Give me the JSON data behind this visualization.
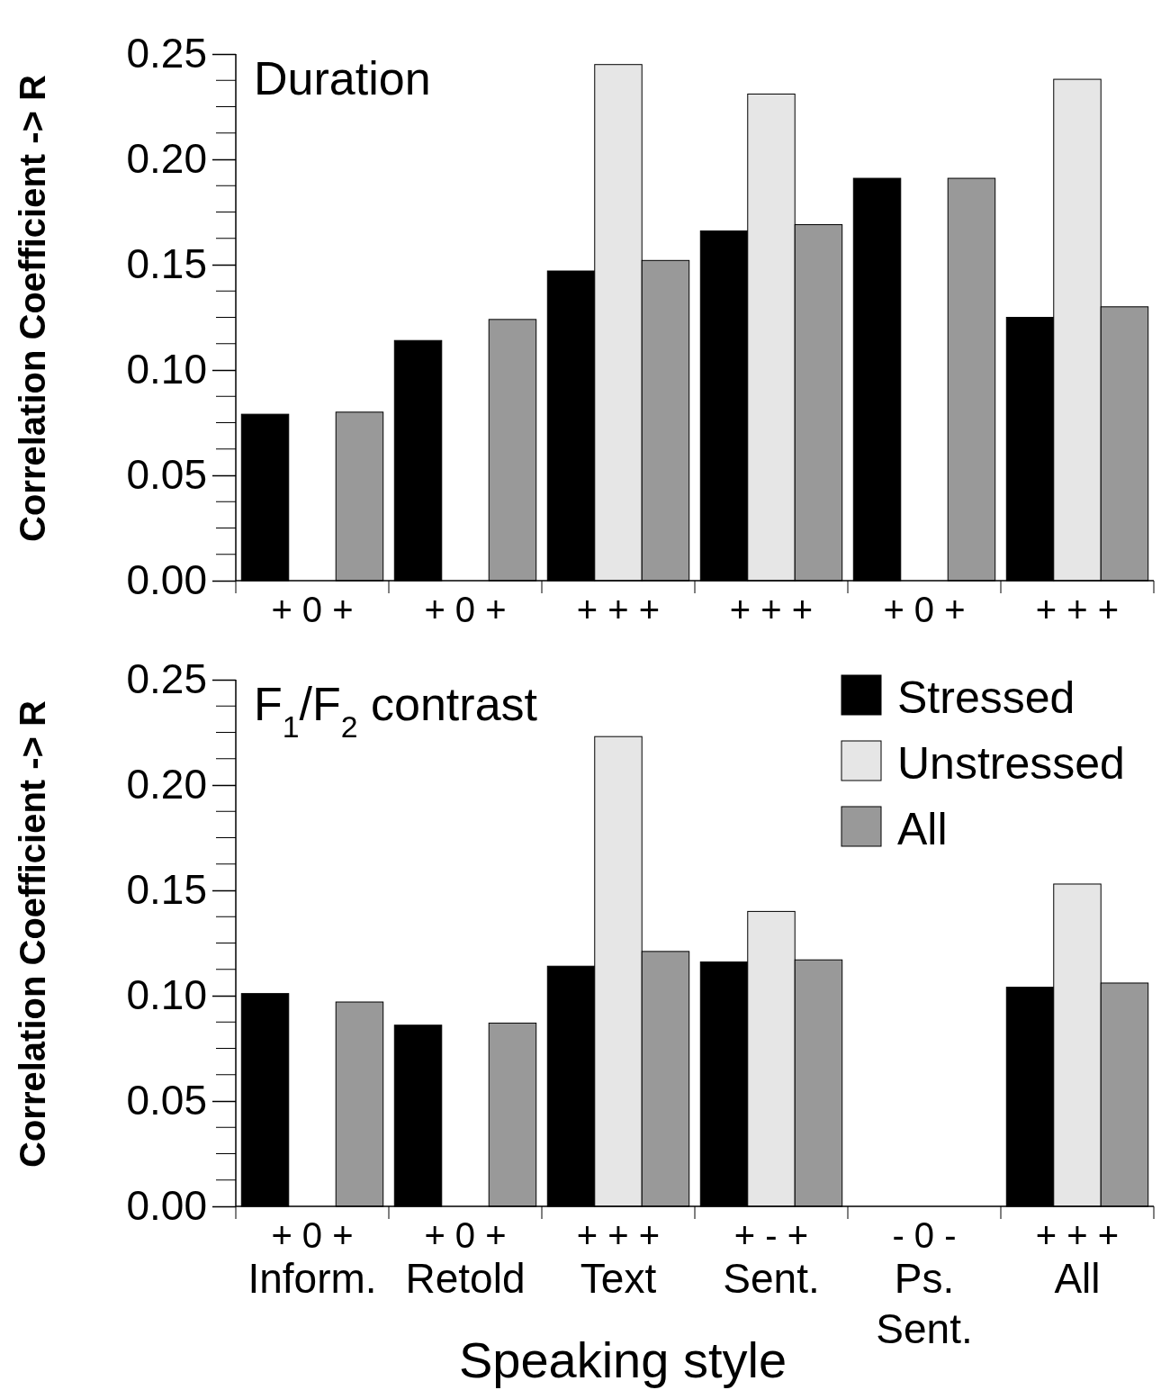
{
  "chart_data": [
    {
      "type": "bar",
      "title": "Duration",
      "ylabel": "Correlation Coefficient -> R",
      "categories": [
        null,
        null,
        null,
        null,
        null,
        null
      ],
      "series": [
        {
          "color": "#000000",
          "values": [
            0.079,
            0.114,
            0.147,
            0.166,
            0.191,
            0.125
          ]
        },
        {
          "color": "#e6e6e6",
          "values": [
            null,
            null,
            0.245,
            0.231,
            null,
            0.238
          ]
        },
        {
          "color": "#999999",
          "values": [
            0.08,
            0.124,
            0.152,
            0.169,
            0.191,
            0.13
          ]
        }
      ],
      "ylim": [
        0,
        0.25
      ],
      "yticks": [
        {
          "value": 0,
          "label": "0.00"
        },
        {
          "value": 0.05,
          "label": "0.05"
        },
        {
          "value": 0.1,
          "label": "0.10"
        },
        {
          "value": 0.15,
          "label": "0.15"
        },
        {
          "value": 0.2,
          "label": "0.20"
        },
        {
          "value": 0.25,
          "label": "0.25"
        }
      ],
      "tick_labels": "y",
      "legend": false,
      "annotations": [
        "+ 0 +",
        "+ 0 +",
        "+ + +",
        "+ + +",
        "+ 0 +",
        "+ + +"
      ]
    },
    {
      "type": "bar",
      "title": "F$_{1}$/F$_{2}$ contrast",
      "ylabel": "Correlation Coefficient -> R",
      "xlabel": "Speaking style",
      "categories": [
        "Inform.",
        "Retold",
        "Text",
        "Sent.",
        "Ps. Sent.",
        "All"
      ],
      "series": [
        {
          "name": "Stressed",
          "color": "#000000",
          "values": [
            0.101,
            0.086,
            0.114,
            0.116,
            0,
            0.104
          ]
        },
        {
          "name": "Unstressed",
          "color": "#e6e6e6",
          "values": [
            null,
            null,
            0.223,
            0.14,
            0,
            0.153
          ]
        },
        {
          "name": "All",
          "color": "#999999",
          "values": [
            0.097,
            0.087,
            0.121,
            0.117,
            0,
            0.106
          ]
        }
      ],
      "ylim": [
        0,
        0.25
      ],
      "yticks": [
        {
          "value": 0,
          "label": "0.00"
        },
        {
          "value": 0.05,
          "label": "0.05"
        },
        {
          "value": 0.1,
          "label": "0.10"
        },
        {
          "value": 0.15,
          "label": "0.15"
        },
        {
          "value": 0.2,
          "label": "0.20"
        },
        {
          "value": 0.25,
          "label": "0.25"
        }
      ],
      "legend": "top right",
      "annotations": [
        "+ 0 +",
        "+ 0 +",
        "+ + +",
        "+ - +",
        "- 0 -",
        "+ + +"
      ]
    }
  ]
}
